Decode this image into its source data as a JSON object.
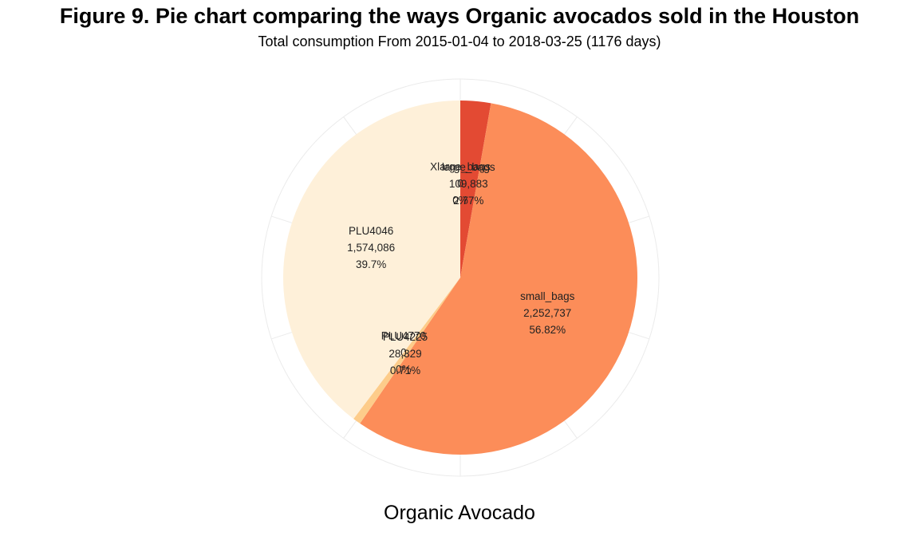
{
  "chart_data": {
    "type": "pie",
    "title": "Figure 9. Pie chart comparing the ways Organic avocados sold in the Houston",
    "subtitle": "Total consumption From 2015-01-04 to 2018-03-25 (1176 days)",
    "xlabel": "Organic Avocado",
    "ylabel": "",
    "grid": true,
    "legend": "none",
    "start_angle_deg": 0,
    "direction": "clockwise",
    "slices": [
      {
        "label": "large_bags",
        "value": 109883,
        "value_label": "109,883",
        "percent_label": "2.77%",
        "color": "#e34a33"
      },
      {
        "label": "small_bags",
        "value": 2252737,
        "value_label": "2,252,737",
        "percent_label": "56.82%",
        "color": "#fc8d59"
      },
      {
        "label": "PLU4225",
        "value": 28329,
        "value_label": "28,329",
        "percent_label": "0.71%",
        "color": "#fdcc8a"
      },
      {
        "label": "PLU4770",
        "value": 0,
        "value_label": "0",
        "percent_label": "0%",
        "color": "#fdd49e"
      },
      {
        "label": "PLU4046",
        "value": 1574086,
        "value_label": "1,574,086",
        "percent_label": "39.7%",
        "color": "#fef0d9"
      },
      {
        "label": "Xlarge_bags",
        "value": 0,
        "value_label": "0",
        "percent_label": "0%",
        "color": "#d7301f"
      }
    ]
  }
}
